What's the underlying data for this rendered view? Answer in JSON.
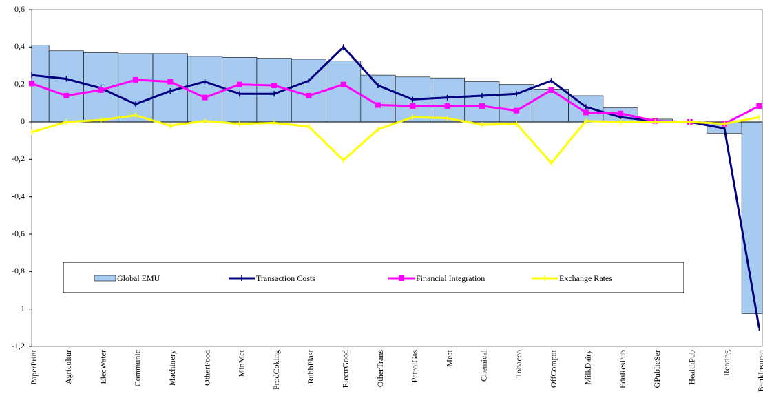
{
  "chart_data": {
    "type": "combo",
    "categories": [
      "PaperPrint",
      "Agricultur",
      "ElecWater",
      "Communic",
      "Machinery",
      "OtherFood",
      "MinMet",
      "ProdCoking",
      "RubbPlast",
      "ElectrGood",
      "OtherTrans",
      "PetrolGas",
      "Meat",
      "Chemical",
      "Tobacco",
      "OffComput",
      "MilkDairy",
      "EduResPub",
      "GPublicSer",
      "HealthPub",
      "Renting",
      "BankInsuran"
    ],
    "series": [
      {
        "name": "Global EMU",
        "type": "bar",
        "color": "#a6caf0",
        "values": [
          0.41,
          0.38,
          0.37,
          0.365,
          0.365,
          0.35,
          0.345,
          0.34,
          0.335,
          0.325,
          0.25,
          0.24,
          0.235,
          0.215,
          0.2,
          0.175,
          0.14,
          0.075,
          0.015,
          0.005,
          -0.06,
          -1.025
        ]
      },
      {
        "name": "Transaction Costs",
        "type": "line",
        "marker": "plus",
        "color": "#000080",
        "values": [
          0.25,
          0.23,
          0.18,
          0.095,
          0.165,
          0.215,
          0.15,
          0.15,
          0.22,
          0.4,
          0.195,
          0.12,
          0.13,
          0.14,
          0.15,
          0.22,
          0.08,
          0.025,
          0.005,
          0.0,
          -0.035,
          -1.1
        ]
      },
      {
        "name": "Financial Integration",
        "type": "line",
        "marker": "square",
        "color": "#ff00ff",
        "values": [
          0.205,
          0.14,
          0.17,
          0.225,
          0.215,
          0.13,
          0.2,
          0.195,
          0.14,
          0.2,
          0.09,
          0.085,
          0.085,
          0.085,
          0.06,
          0.17,
          0.05,
          0.045,
          0.005,
          0.0,
          -0.01,
          0.085
        ]
      },
      {
        "name": "Exchange Rates",
        "type": "line",
        "marker": "bar",
        "color": "#ffff00",
        "values": [
          -0.055,
          0.0,
          0.01,
          0.035,
          -0.02,
          0.005,
          -0.01,
          -0.005,
          -0.025,
          -0.205,
          -0.04,
          0.025,
          0.02,
          -0.015,
          -0.01,
          -0.22,
          0.005,
          0.0,
          0.0,
          0.0,
          -0.01,
          0.025
        ]
      }
    ],
    "ylim": [
      -1.2,
      0.6
    ],
    "yticks": [
      {
        "value": 0.6,
        "label": "0,6"
      },
      {
        "value": 0.4,
        "label": "0,4"
      },
      {
        "value": 0.2,
        "label": "0,2"
      },
      0,
      {
        "value": -0.2,
        "label": "-0,2"
      },
      {
        "value": -0.4,
        "label": "-0,4"
      },
      {
        "value": -0.6,
        "label": "-0,6"
      },
      {
        "value": -0.8,
        "label": "-0,8"
      },
      -1,
      {
        "value": -1.2,
        "label": "-1,2"
      }
    ],
    "grid": false
  }
}
